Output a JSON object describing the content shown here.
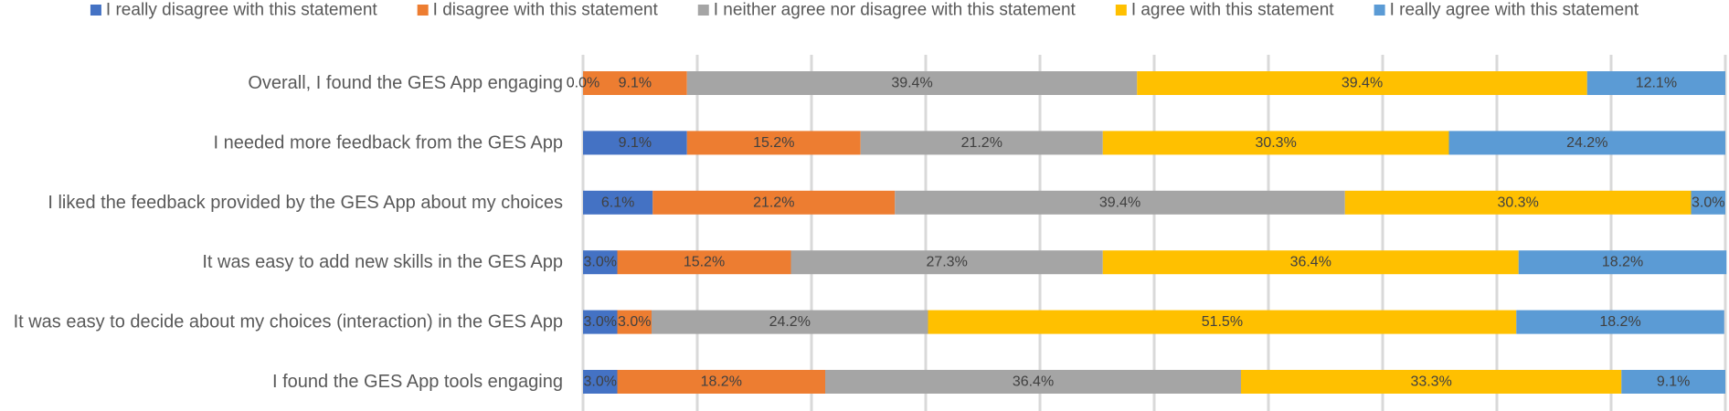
{
  "chart_data": {
    "type": "bar",
    "orientation": "horizontal",
    "stacked": true,
    "title": "",
    "xlabel": "",
    "ylabel": "",
    "xlim": [
      0,
      100
    ],
    "grid": true,
    "legend": "top",
    "categories": [
      "Overall, I found the GES App engaging",
      "I needed more feedback from the GES App",
      "I liked the feedback provided by the GES App  about my choices",
      "It was easy to add new skills in the GES App",
      "It was easy to decide about my choices (interaction) in the GES App",
      "I found the GES App tools engaging"
    ],
    "series": [
      {
        "name": "I really disagree with this statement",
        "color": "#4472C4",
        "values": [
          0.0,
          9.1,
          6.1,
          3.0,
          3.0,
          3.0
        ],
        "labels": [
          "0.0%",
          "9.1%",
          "6.1%",
          "3.0%",
          "3.0%",
          "3.0%"
        ]
      },
      {
        "name": "I disagree with this statement",
        "color": "#ED7D31",
        "values": [
          9.1,
          15.2,
          21.2,
          15.2,
          3.0,
          18.2
        ],
        "labels": [
          "9.1%",
          "15.2%",
          "21.2%",
          "15.2%",
          "3.0%",
          "18.2%"
        ]
      },
      {
        "name": "I neither agree nor disagree with this statement",
        "color": "#A5A5A5",
        "values": [
          39.4,
          21.2,
          39.4,
          27.3,
          24.2,
          36.4
        ],
        "labels": [
          "39.4%",
          "21.2%",
          "39.4%",
          "27.3%",
          "24.2%",
          "36.4%"
        ]
      },
      {
        "name": "I agree with this statement",
        "color": "#FFC000",
        "values": [
          39.4,
          30.3,
          30.3,
          36.4,
          51.5,
          33.3
        ],
        "labels": [
          "39.4%",
          "30.3%",
          "30.3%",
          "36.4%",
          "51.5%",
          "33.3%"
        ]
      },
      {
        "name": "I really agree with this statement",
        "color": "#5B9BD5",
        "values": [
          12.1,
          24.2,
          3.0,
          18.2,
          18.2,
          9.1
        ],
        "labels": [
          "12.1%",
          "24.2%",
          "3.0%",
          "18.2%",
          "18.2%",
          "9.1%"
        ]
      }
    ]
  }
}
